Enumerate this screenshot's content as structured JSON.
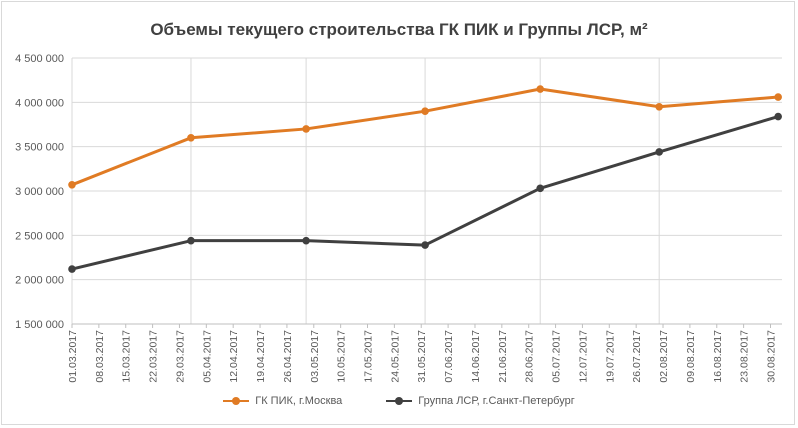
{
  "chart_data": {
    "type": "line",
    "title": "Объемы текущего строительства ГК ПИК и Группы ЛСР, м²",
    "xlabel": "",
    "ylabel": "",
    "ylim": [
      1500000,
      4500000
    ],
    "yticks": [
      {
        "value": 1500000,
        "label": "1 500 000"
      },
      {
        "value": 2000000,
        "label": "2 000 000"
      },
      {
        "value": 2500000,
        "label": "2 500 000"
      },
      {
        "value": 3000000,
        "label": "3 000 000"
      },
      {
        "value": 3500000,
        "label": "3 500 000"
      },
      {
        "value": 4000000,
        "label": "4 000 000"
      },
      {
        "value": 4500000,
        "label": "4 500 000"
      }
    ],
    "xticks": [
      "01.03.2017",
      "08.03.2017",
      "15.03.2017",
      "22.03.2017",
      "29.03.2017",
      "05.04.2017",
      "12.04.2017",
      "19.04.2017",
      "26.04.2017",
      "03.05.2017",
      "10.05.2017",
      "17.05.2017",
      "24.05.2017",
      "31.05.2017",
      "07.06.2017",
      "14.06.2017",
      "21.06.2017",
      "28.06.2017",
      "05.07.2017",
      "12.07.2017",
      "19.07.2017",
      "26.07.2017",
      "02.08.2017",
      "09.08.2017",
      "16.08.2017",
      "23.08.2017",
      "30.08.2017"
    ],
    "xlim": [
      "01.03.2017",
      "02.09.2017"
    ],
    "vertical_grid_dates": [
      "01.04.2017",
      "01.05.2017",
      "01.06.2017",
      "01.07.2017",
      "01.08.2017"
    ],
    "grid": true,
    "legend_position": "bottom",
    "series": [
      {
        "name": "ГК ПИК, г.Москва",
        "color": "#e07b24",
        "points": [
          {
            "x": "01.03.2017",
            "y": 3070000
          },
          {
            "x": "01.04.2017",
            "y": 3600000
          },
          {
            "x": "01.05.2017",
            "y": 3700000
          },
          {
            "x": "01.06.2017",
            "y": 3900000
          },
          {
            "x": "01.07.2017",
            "y": 4150000
          },
          {
            "x": "01.08.2017",
            "y": 3950000
          },
          {
            "x": "01.09.2017",
            "y": 4060000
          }
        ]
      },
      {
        "name": "Группа ЛСР, г.Санкт-Петербург",
        "color": "#404040",
        "points": [
          {
            "x": "01.03.2017",
            "y": 2120000
          },
          {
            "x": "01.04.2017",
            "y": 2440000
          },
          {
            "x": "01.05.2017",
            "y": 2440000
          },
          {
            "x": "01.06.2017",
            "y": 2390000
          },
          {
            "x": "01.07.2017",
            "y": 3030000
          },
          {
            "x": "01.08.2017",
            "y": 3440000
          },
          {
            "x": "01.09.2017",
            "y": 3840000
          }
        ]
      }
    ]
  }
}
